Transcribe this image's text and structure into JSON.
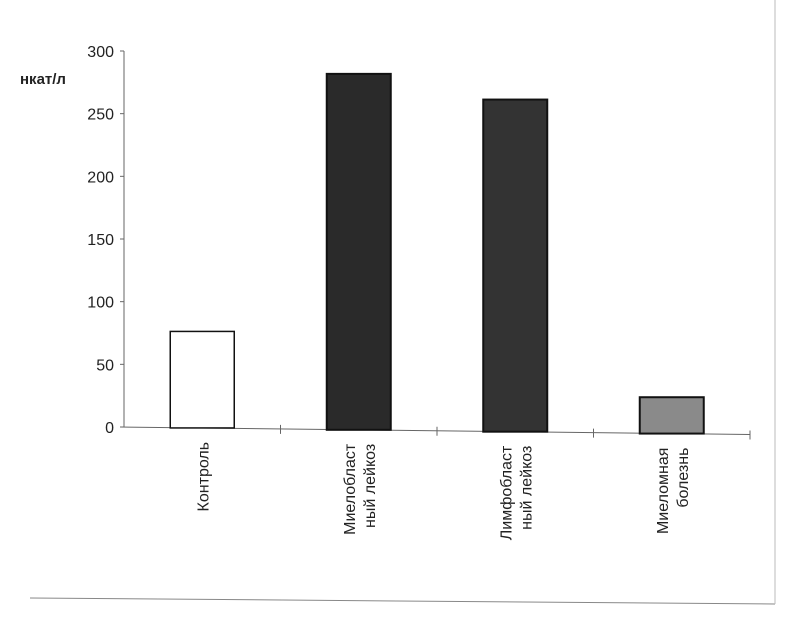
{
  "chart_data": {
    "type": "bar",
    "ylabel": "нкат/л",
    "ylim": [
      0,
      300
    ],
    "yticks": [
      "0",
      "50",
      "100",
      "150",
      "200",
      "250",
      "300"
    ],
    "grid": false,
    "categories": [
      [
        "Контроль"
      ],
      [
        "Миелобласт",
        "ный лейкоз"
      ],
      [
        "Лимфобласт",
        "ный лейкоз"
      ],
      [
        "Миеломная",
        "болезнь"
      ]
    ],
    "values": [
      77,
      284,
      265,
      29
    ],
    "colors": [
      "#ffffff",
      "#2a2a2a",
      "#333333",
      "#8a8a8a"
    ]
  }
}
